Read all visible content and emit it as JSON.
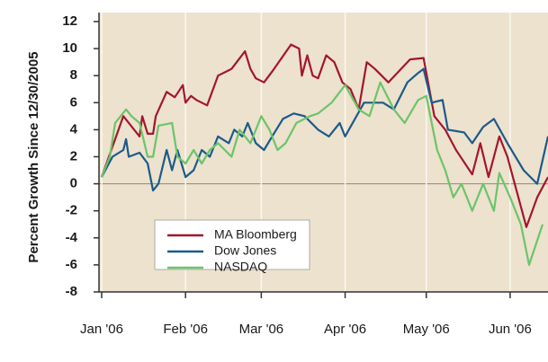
{
  "chart_data": {
    "type": "line",
    "y_label": "Percent Growth Since 12/30/2005",
    "xlim": [
      -1,
      165
    ],
    "ylim": [
      -8,
      12
    ],
    "xticks": [
      {
        "value": 0,
        "label": "Jan '06"
      },
      {
        "value": 31,
        "label": "Feb '06"
      },
      {
        "value": 59,
        "label": "Mar '06"
      },
      {
        "value": 90,
        "label": "Apr '06"
      },
      {
        "value": 120,
        "label": "May '06"
      },
      {
        "value": 151,
        "label": "Jun '06"
      }
    ],
    "yticks": [
      -8,
      -6,
      -4,
      -2,
      0,
      2,
      4,
      6,
      8,
      10,
      12
    ],
    "legend": "lower-left",
    "series": [
      {
        "name": "MA Bloomberg",
        "color": "#a3162e",
        "x": [
          0,
          8,
          12,
          14,
          15,
          17,
          19,
          20,
          24,
          27,
          30,
          31,
          33,
          35,
          39,
          43,
          48,
          53,
          55,
          57,
          60,
          63,
          70,
          73,
          74,
          76,
          78,
          80,
          83,
          86,
          89,
          92,
          95,
          98,
          101,
          106,
          114,
          119,
          123,
          127,
          131,
          137,
          140,
          143,
          147,
          150,
          157,
          161,
          165
        ],
        "values": [
          0.5,
          5,
          4,
          3.5,
          5,
          3.7,
          3.7,
          5,
          6.8,
          6.4,
          7.3,
          6,
          6.5,
          6.2,
          5.8,
          8,
          8.5,
          9.8,
          8.5,
          7.8,
          7.5,
          8.3,
          10.3,
          10,
          8,
          9.5,
          8,
          7.8,
          9.5,
          9,
          7.5,
          7,
          5.5,
          9,
          8.5,
          7.5,
          9.2,
          9.3,
          5,
          4,
          2.5,
          0.7,
          3,
          0.5,
          3.5,
          2,
          -3.2,
          -1,
          0.5
        ]
      },
      {
        "name": "Dow Jones",
        "color": "#1b5a8c",
        "x": [
          0,
          4,
          8,
          9,
          10,
          14,
          17,
          19,
          21,
          24,
          26,
          28,
          31,
          34,
          37,
          40,
          43,
          47,
          49,
          52,
          54,
          57,
          60,
          63,
          67,
          71,
          75,
          80,
          84,
          88,
          90,
          97,
          104,
          108,
          113,
          117,
          119,
          122,
          126,
          128,
          134,
          137,
          141,
          145,
          150,
          156,
          161,
          165
        ],
        "values": [
          0.5,
          2,
          2.5,
          3.3,
          2,
          2.3,
          1.5,
          -0.5,
          0,
          2.5,
          1,
          2.5,
          0.5,
          1,
          2.5,
          2,
          3.5,
          3,
          4,
          3.5,
          4.5,
          3,
          2.5,
          3.5,
          4.8,
          5.2,
          5,
          4,
          3.5,
          4.5,
          3.5,
          6,
          6,
          5.5,
          7.5,
          8.2,
          8.5,
          6,
          6.2,
          4,
          3.8,
          3,
          4.2,
          4.8,
          3,
          1,
          0,
          3.5
        ]
      },
      {
        "name": "NASDAQ",
        "color": "#6cc46a",
        "x": [
          0,
          3,
          5,
          9,
          11,
          14,
          17,
          19,
          21,
          26,
          28,
          31,
          34,
          37,
          40,
          43,
          48,
          51,
          55,
          59,
          62,
          65,
          68,
          72,
          77,
          80,
          85,
          90,
          95,
          99,
          103,
          108,
          112,
          117,
          120,
          124,
          127,
          130,
          133,
          137,
          141,
          145,
          147,
          151,
          155,
          158,
          163
        ],
        "values": [
          0.5,
          2,
          4.5,
          5.5,
          5,
          4.5,
          2,
          2,
          4.3,
          4.5,
          2,
          1.5,
          2.5,
          1.5,
          2.5,
          3,
          2,
          4,
          3,
          5,
          4,
          2.5,
          3,
          4.5,
          5,
          5.2,
          6,
          7.3,
          5.5,
          5,
          7.5,
          5.5,
          4.5,
          6.2,
          6.5,
          2.5,
          1,
          -1,
          0,
          -2,
          0,
          -2,
          0.8,
          -1,
          -3,
          -6,
          -3
        ]
      }
    ]
  }
}
